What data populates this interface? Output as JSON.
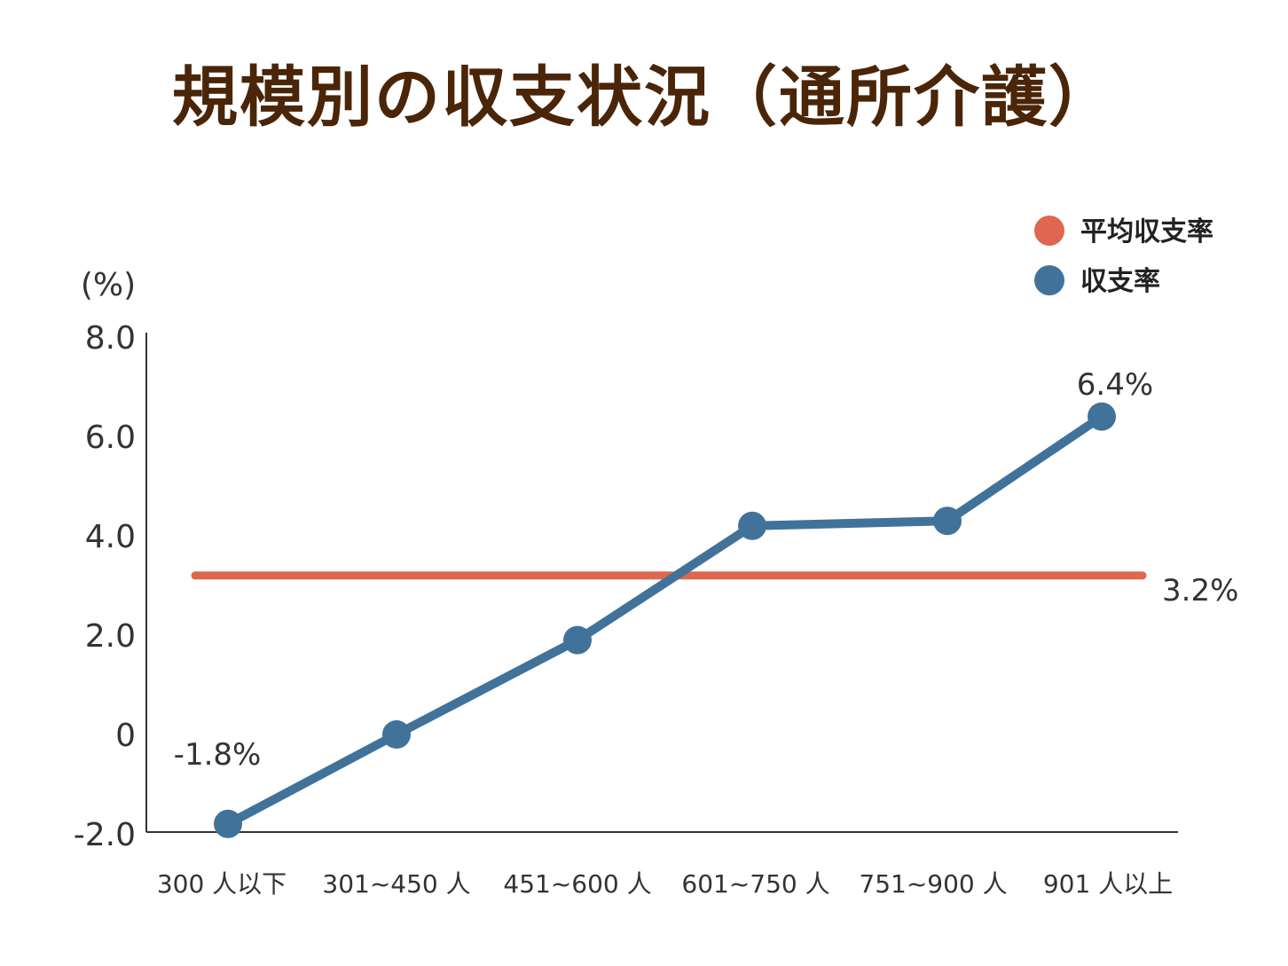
{
  "chart_data": {
    "type": "line",
    "title": "規模別の収支状況（通所介護）",
    "ylabel": "(%)",
    "xlabel": "",
    "categories": [
      "300 人以下",
      "301~450 人",
      "451~600 人",
      "601~750 人",
      "751~900 人",
      "901 人以上"
    ],
    "ylim": [
      -2.0,
      8.0
    ],
    "yticks": [
      "-2.0",
      "0",
      "2.0",
      "4.0",
      "6.0",
      "8.0"
    ],
    "grid": false,
    "legend_position": "top-right",
    "series": [
      {
        "name": "収支率",
        "color": "#41729a",
        "values": [
          -1.8,
          0.0,
          1.9,
          4.2,
          4.3,
          6.4
        ]
      },
      {
        "name": "平均収支率",
        "color": "#e06650",
        "values": [
          3.2,
          3.2,
          3.2,
          3.2,
          3.2,
          3.2
        ]
      }
    ],
    "legend": [
      "平均収支率",
      "収支率"
    ],
    "annotations": [
      "-1.8%",
      "6.4%",
      "3.2%"
    ]
  }
}
